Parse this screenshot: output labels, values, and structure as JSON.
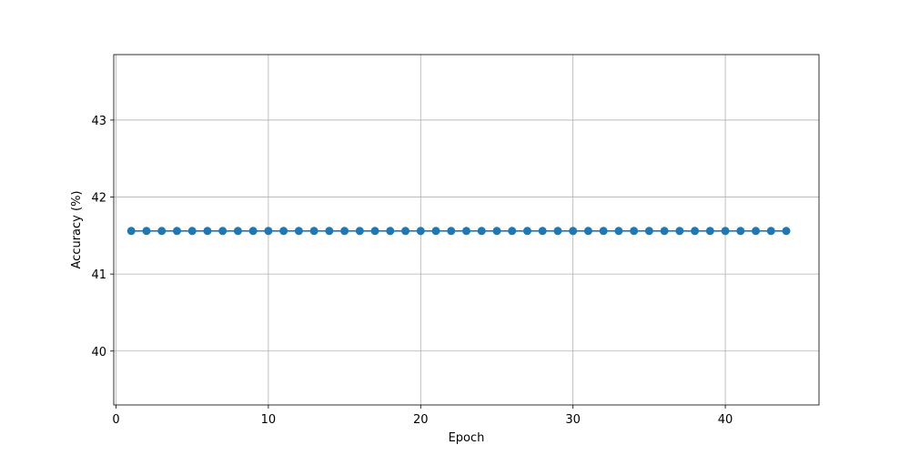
{
  "chart_data": {
    "type": "line",
    "xlabel": "Epoch",
    "ylabel": "Accuracy (%)",
    "xlim": [
      -0.15,
      46.15
    ],
    "ylim": [
      39.3,
      43.85
    ],
    "xticks": [
      0,
      10,
      20,
      30,
      40
    ],
    "yticks": [
      40,
      41,
      42,
      43
    ],
    "grid": true,
    "series": [
      {
        "color": "#1f77b4",
        "marker": "circle",
        "x": [
          1,
          2,
          3,
          4,
          5,
          6,
          7,
          8,
          9,
          10,
          11,
          12,
          13,
          14,
          15,
          16,
          17,
          18,
          19,
          20,
          21,
          22,
          23,
          24,
          25,
          26,
          27,
          28,
          29,
          30,
          31,
          32,
          33,
          34,
          35,
          36,
          37,
          38,
          39,
          40,
          41,
          42,
          43,
          44
        ],
        "y": [
          41.56,
          41.56,
          41.56,
          41.56,
          41.56,
          41.56,
          41.56,
          41.56,
          41.56,
          41.56,
          41.56,
          41.56,
          41.56,
          41.56,
          41.56,
          41.56,
          41.56,
          41.56,
          41.56,
          41.56,
          41.56,
          41.56,
          41.56,
          41.56,
          41.56,
          41.56,
          41.56,
          41.56,
          41.56,
          41.56,
          41.56,
          41.56,
          41.56,
          41.56,
          41.56,
          41.56,
          41.56,
          41.56,
          41.56,
          41.56,
          41.56,
          41.56,
          41.56,
          41.56
        ]
      }
    ]
  }
}
